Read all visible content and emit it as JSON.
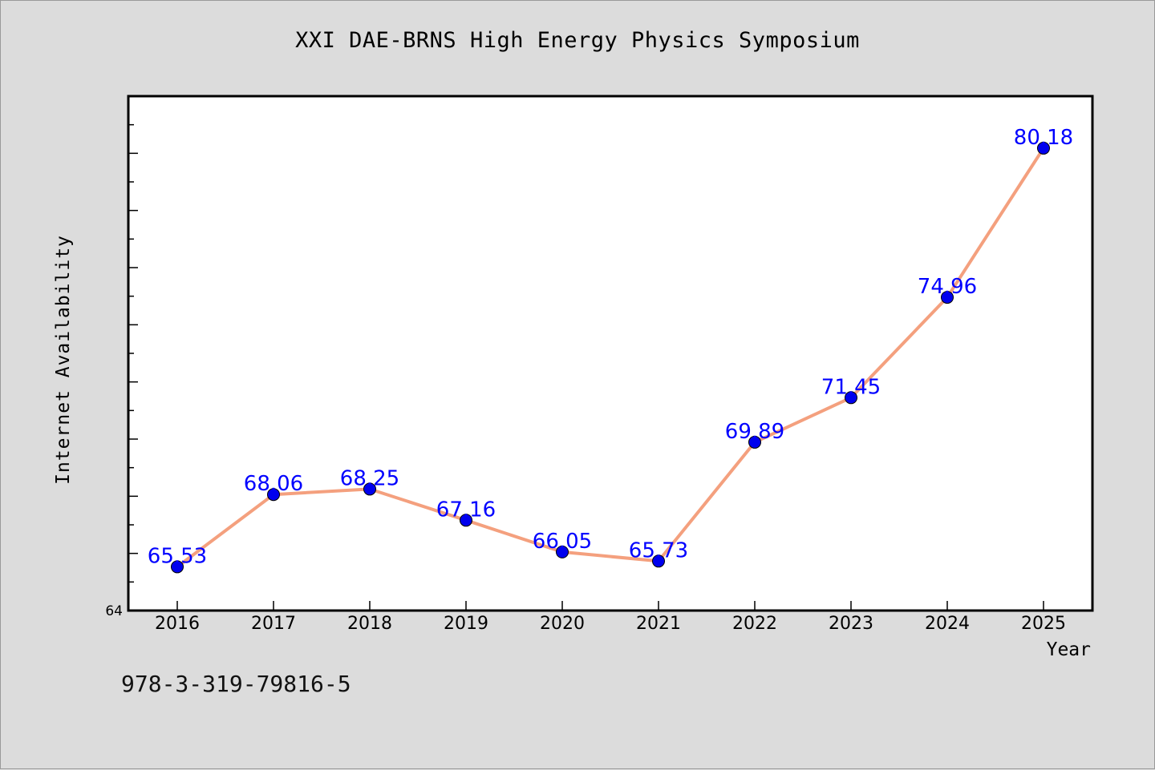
{
  "chart_data": {
    "type": "line",
    "title": "XXI DAE-BRNS High Energy Physics Symposium",
    "xlabel": "Year",
    "ylabel": "Internet Availability",
    "categories": [
      "2016",
      "2017",
      "2018",
      "2019",
      "2020",
      "2021",
      "2022",
      "2023",
      "2024",
      "2025"
    ],
    "series": [
      {
        "values": [
          65.53,
          68.06,
          68.25,
          67.16,
          66.05,
          65.73,
          69.89,
          71.45,
          74.96,
          80.18
        ],
        "value_labels": [
          "65.53",
          "68.06",
          "68.25",
          "67.16",
          "66.05",
          "65.73",
          "69.89",
          "71.45",
          "74.96",
          "80.18"
        ],
        "line_color": "#f4a07e",
        "marker_color": "#0000ee",
        "label_color": "#0000ff"
      }
    ],
    "ylim": [
      64,
      82
    ],
    "y_tick_labels": [
      "64"
    ],
    "grid": false,
    "legend": "none"
  },
  "footer": {
    "isbn": "978-3-319-79816-5"
  },
  "colors": {
    "background": "#dcdcdc",
    "plot_background": "#ffffff",
    "axes": "#000000"
  }
}
